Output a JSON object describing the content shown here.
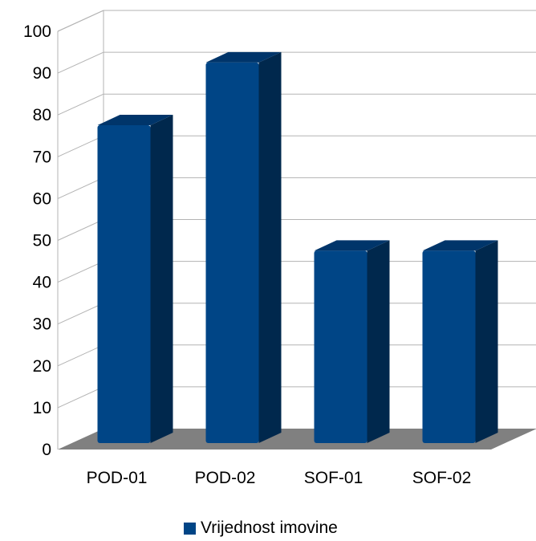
{
  "chart_data": {
    "type": "bar",
    "categories": [
      "POD-01",
      "POD-02",
      "SOF-01",
      "SOF-02"
    ],
    "series": [
      {
        "name": "Vrijednost imovine",
        "values": [
          76,
          91,
          46,
          46
        ],
        "color": "#004586"
      }
    ],
    "y_ticks": [
      "0",
      "10",
      "20",
      "30",
      "40",
      "50",
      "60",
      "70",
      "80",
      "90",
      "100"
    ],
    "ylim": [
      0,
      100
    ],
    "grid": true,
    "style": "3d",
    "legend_position": "bottom",
    "floor_color": "#808080",
    "bar_side_color": "#00284d",
    "bar_top_color": "#00356a"
  }
}
